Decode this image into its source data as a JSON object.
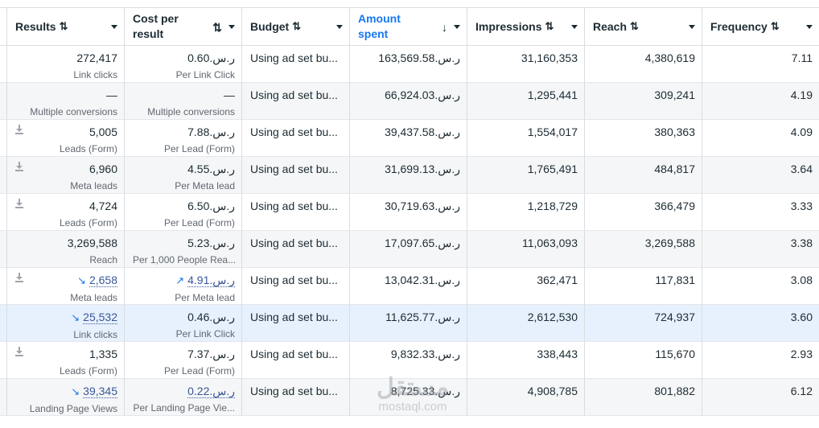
{
  "columns": [
    {
      "label": "Results",
      "sort": "⇅"
    },
    {
      "label": "Cost per result",
      "sort": "⇅"
    },
    {
      "label": "Budget",
      "sort": "⇅"
    },
    {
      "label": "Amount spent",
      "sort": "↓"
    },
    {
      "label": "Impressions",
      "sort": "⇅"
    },
    {
      "label": "Reach",
      "sort": "⇅"
    },
    {
      "label": "Frequency",
      "sort": "⇅"
    }
  ],
  "colors": {
    "active_header": "#1877f2",
    "highlight_row": "#e7f0fd",
    "link": "#385898"
  },
  "rows": [
    {
      "results": "272,417",
      "results_sub": "Link clicks",
      "cost": "ر.س.0.60",
      "cost_sub": "Per Link Click",
      "budget": "Using ad set bu...",
      "amount": "ر.س.163,569.58",
      "impressions": "31,160,353",
      "reach": "4,380,619",
      "frequency": "7.11"
    },
    {
      "results": "—",
      "results_sub": "Multiple conversions",
      "cost": "—",
      "cost_sub": "Multiple conversions",
      "budget": "Using ad set bu...",
      "amount": "ر.س.66,924.03",
      "impressions": "1,295,441",
      "reach": "309,241",
      "frequency": "4.19"
    },
    {
      "results": "5,005",
      "results_sub": "Leads (Form)",
      "cost": "ر.س.7.88",
      "cost_sub": "Per Lead (Form)",
      "budget": "Using ad set bu...",
      "amount": "ر.س.39,437.58",
      "impressions": "1,554,017",
      "reach": "380,363",
      "frequency": "4.09"
    },
    {
      "results": "6,960",
      "results_sub": "Meta leads",
      "cost": "ر.س.4.55",
      "cost_sub": "Per Meta lead",
      "budget": "Using ad set bu...",
      "amount": "ر.س.31,699.13",
      "impressions": "1,765,491",
      "reach": "484,817",
      "frequency": "3.64"
    },
    {
      "results": "4,724",
      "results_sub": "Leads (Form)",
      "cost": "ر.س.6.50",
      "cost_sub": "Per Lead (Form)",
      "budget": "Using ad set bu...",
      "amount": "ر.س.30,719.63",
      "impressions": "1,218,729",
      "reach": "366,479",
      "frequency": "3.33"
    },
    {
      "results": "3,269,588",
      "results_sub": "Reach",
      "cost": "ر.س.5.23",
      "cost_sub": "Per 1,000 People Rea...",
      "budget": "Using ad set bu...",
      "amount": "ر.س.17,097.65",
      "impressions": "11,063,093",
      "reach": "3,269,588",
      "frequency": "3.38"
    },
    {
      "results": "2,658",
      "results_sub": "Meta leads",
      "cost": "ر.س.4.91",
      "cost_sub": "Per Meta lead",
      "budget": "Using ad set bu...",
      "amount": "ر.س.13,042.31",
      "impressions": "362,471",
      "reach": "117,831",
      "frequency": "3.08"
    },
    {
      "results": "25,532",
      "results_sub": "Link clicks",
      "cost": "ر.س.0.46",
      "cost_sub": "Per Link Click",
      "budget": "Using ad set bu...",
      "amount": "ر.س.11,625.77",
      "impressions": "2,612,530",
      "reach": "724,937",
      "frequency": "3.60"
    },
    {
      "results": "1,335",
      "results_sub": "Leads (Form)",
      "cost": "ر.س.7.37",
      "cost_sub": "Per Lead (Form)",
      "budget": "Using ad set bu...",
      "amount": "ر.س.9,832.33",
      "impressions": "338,443",
      "reach": "115,670",
      "frequency": "2.93"
    },
    {
      "results": "39,345",
      "results_sub": "Landing Page Views",
      "cost": "ر.س.0.22",
      "cost_sub": "Per Landing Page Vie...",
      "budget": "Using ad set bu...",
      "amount": "ر.س.8,725.33",
      "impressions": "4,908,785",
      "reach": "801,882",
      "frequency": "6.12"
    }
  ],
  "watermark": {
    "arabic": "مستقل",
    "latin": "mostaql.com"
  }
}
